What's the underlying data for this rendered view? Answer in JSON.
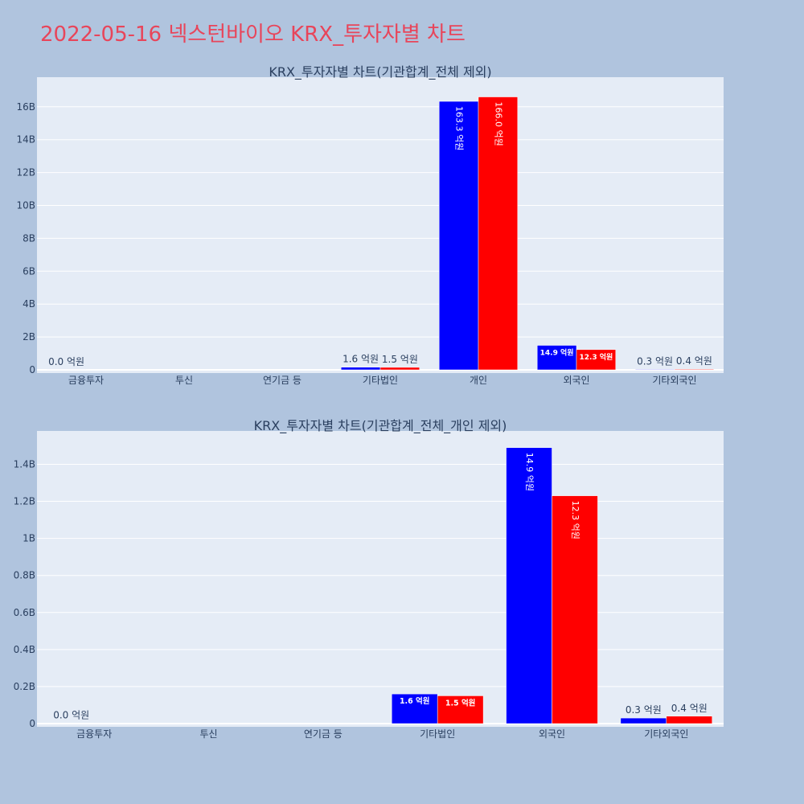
{
  "title": "2022-05-16 넥스턴바이오 KRX_투자자별 차트",
  "colors": {
    "background": "#b0c4de",
    "plot_bg": "#e5ecf6",
    "buy": "#0000ff",
    "sell": "#ff0000",
    "title": "#e8455a",
    "text": "#2a3f5f"
  },
  "chart_data": [
    {
      "type": "bar",
      "title": "KRX_투자자별 차트(기관합계_전체 제외)",
      "categories": [
        "금융투자",
        "투신",
        "연기금 등",
        "기타법인",
        "개인",
        "외국인",
        "기타외국인"
      ],
      "series": [
        {
          "values": [
            2000000,
            0,
            0,
            160000000,
            16330000000,
            1490000000,
            30000000
          ],
          "labels": [
            "0.0 억원",
            "",
            "",
            "1.6 억원",
            "163.3 억원",
            "14.9 억원",
            "0.3 억원"
          ]
        },
        {
          "values": [
            0,
            0,
            0,
            150000000,
            16600000000,
            1230000000,
            40000000
          ],
          "labels": [
            "",
            "",
            "",
            "1.5 억원",
            "166.0 억원",
            "12.3 억원",
            "0.4 억원"
          ]
        }
      ],
      "yticks": [
        0,
        2000000000,
        4000000000,
        6000000000,
        8000000000,
        10000000000,
        12000000000,
        14000000000,
        16000000000
      ],
      "ytick_labels": [
        "0",
        "2B",
        "4B",
        "6B",
        "8B",
        "10B",
        "12B",
        "14B",
        "16B"
      ],
      "ylim": [
        0,
        17800000000
      ],
      "grid": true
    },
    {
      "type": "bar",
      "title": "KRX_투자자별 차트(기관합계_전체_개인 제외)",
      "categories": [
        "금융투자",
        "투신",
        "연기금 등",
        "기타법인",
        "외국인",
        "기타외국인"
      ],
      "series": [
        {
          "values": [
            2000000,
            0,
            0,
            160000000,
            1490000000,
            30000000
          ],
          "labels": [
            "0.0 억원",
            "",
            "",
            "1.6 억원",
            "14.9 억원",
            "0.3 억원"
          ]
        },
        {
          "values": [
            0,
            0,
            0,
            150000000,
            1230000000,
            40000000
          ],
          "labels": [
            "",
            "",
            "",
            "1.5 억원",
            "12.3 억원",
            "0.4 억원"
          ]
        }
      ],
      "yticks": [
        0,
        200000000,
        400000000,
        600000000,
        800000000,
        1000000000,
        1200000000,
        1400000000
      ],
      "ytick_labels": [
        "0",
        "0.2B",
        "0.4B",
        "0.6B",
        "0.8B",
        "1B",
        "1.2B",
        "1.4B"
      ],
      "ylim": [
        0,
        1580000000
      ],
      "grid": true
    }
  ]
}
